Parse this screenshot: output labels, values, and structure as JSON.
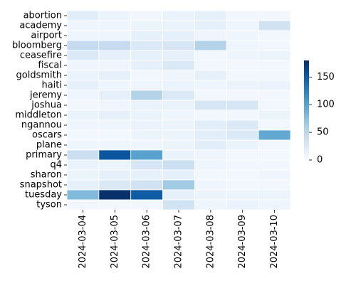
{
  "chart_data": {
    "type": "heatmap",
    "title": "",
    "xlabel": "",
    "ylabel": "",
    "x": [
      "2024-03-04",
      "2024-03-05",
      "2024-03-06",
      "2024-03-07",
      "2024-03-08",
      "2024-03-09",
      "2024-03-10"
    ],
    "y": [
      "abortion",
      "academy",
      "airport",
      "bloomberg",
      "ceasefire",
      "fiscal",
      "goldsmith",
      "haiti",
      "jeremy",
      "joshua",
      "middleton",
      "ngannou",
      "oscars",
      "plane",
      "primary",
      "q4",
      "sharon",
      "snapshot",
      "tuesday",
      "tyson"
    ],
    "values": [
      [
        20,
        10,
        5,
        12,
        15,
        5,
        5
      ],
      [
        8,
        8,
        10,
        12,
        15,
        8,
        35
      ],
      [
        8,
        8,
        15,
        15,
        8,
        8,
        5
      ],
      [
        45,
        45,
        25,
        30,
        55,
        8,
        5
      ],
      [
        25,
        15,
        15,
        15,
        5,
        8,
        10
      ],
      [
        8,
        8,
        15,
        25,
        5,
        5,
        5
      ],
      [
        12,
        15,
        5,
        8,
        15,
        5,
        5
      ],
      [
        15,
        8,
        8,
        12,
        8,
        10,
        12
      ],
      [
        8,
        15,
        55,
        25,
        5,
        5,
        5
      ],
      [
        5,
        8,
        12,
        12,
        30,
        30,
        5
      ],
      [
        12,
        15,
        12,
        8,
        5,
        5,
        10
      ],
      [
        8,
        8,
        12,
        10,
        20,
        25,
        5
      ],
      [
        5,
        5,
        10,
        10,
        20,
        25,
        95
      ],
      [
        8,
        8,
        8,
        10,
        20,
        12,
        5
      ],
      [
        40,
        155,
        100,
        12,
        8,
        5,
        5
      ],
      [
        12,
        10,
        30,
        40,
        8,
        5,
        5
      ],
      [
        10,
        15,
        15,
        15,
        5,
        5,
        8
      ],
      [
        15,
        25,
        35,
        65,
        8,
        5,
        5
      ],
      [
        80,
        180,
        150,
        15,
        10,
        10,
        10
      ],
      [
        5,
        5,
        5,
        35,
        8,
        12,
        8
      ]
    ],
    "colorbar": {
      "min": 0,
      "max": 180,
      "ticks": [
        0,
        50,
        100,
        150
      ],
      "colormap": "Blues"
    }
  }
}
